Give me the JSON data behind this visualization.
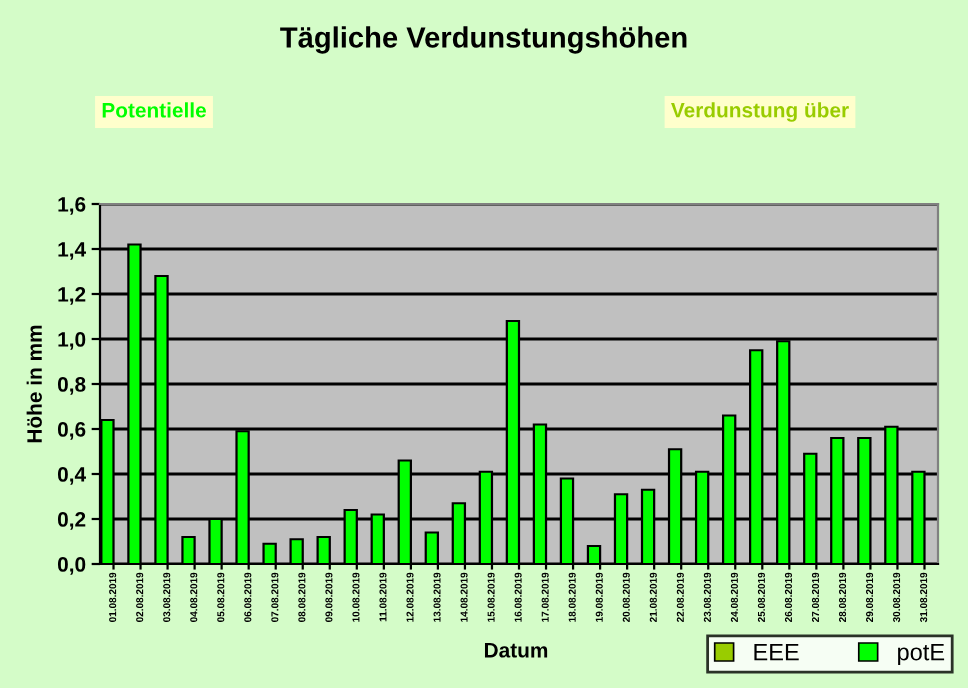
{
  "chart_data": {
    "type": "bar",
    "title": "Tägliche Verdunstungshöhen",
    "annotations": [
      "Potentielle",
      "Verdunstung über"
    ],
    "xlabel": "Datum",
    "ylabel": "Höhe in mm",
    "categories": [
      "01.08.2019",
      "02.08.2019",
      "03.08.2019",
      "04.08.2019",
      "05.08.2019",
      "06.08.2019",
      "07.08.2019",
      "08.08.2019",
      "09.08.2019",
      "10.08.2019",
      "11.08.2019",
      "12.08.2019",
      "13.08.2019",
      "14.08.2019",
      "15.08.2019",
      "16.08.2019",
      "17.08.2019",
      "18.08.2019",
      "19.08.2019",
      "20.08.2019",
      "21.08.2019",
      "22.08.2019",
      "23.08.2019",
      "24.08.2019",
      "25.08.2019",
      "26.08.2019",
      "27.08.2019",
      "28.08.2019",
      "29.08.2019",
      "30.08.2019",
      "31.08.2019"
    ],
    "series": [
      {
        "name": "potE",
        "color": "#00ff00",
        "values": [
          0.64,
          1.42,
          1.28,
          0.12,
          0.2,
          0.59,
          0.09,
          0.11,
          0.12,
          0.24,
          0.22,
          0.46,
          0.14,
          0.27,
          0.41,
          1.08,
          0.62,
          0.38,
          0.08,
          0.31,
          0.33,
          0.51,
          0.41,
          0.66,
          0.95,
          0.99,
          0.49,
          0.56,
          0.56,
          0.61,
          0.41
        ]
      },
      {
        "name": "EEE",
        "color": "#99cc00",
        "values": [
          null,
          null,
          null,
          null,
          null,
          null,
          null,
          null,
          null,
          null,
          null,
          null,
          null,
          null,
          null,
          null,
          null,
          null,
          null,
          null,
          null,
          null,
          null,
          null,
          null,
          null,
          null,
          null,
          null,
          null,
          null
        ]
      }
    ],
    "ylim": [
      0,
      1.6
    ],
    "yticks": [
      {
        "value": 0,
        "label": "0,0"
      },
      {
        "value": 0.2,
        "label": "0,2"
      },
      {
        "value": 0.4,
        "label": "0,4"
      },
      {
        "value": 0.6,
        "label": "0,6"
      },
      {
        "value": 0.8,
        "label": "0,8"
      },
      {
        "value": 1.0,
        "label": "1,0"
      },
      {
        "value": 1.2,
        "label": "1,2"
      },
      {
        "value": 1.4,
        "label": "1,4"
      },
      {
        "value": 1.6,
        "label": "1,6"
      }
    ],
    "grid": "y",
    "legend": "bottom right"
  }
}
